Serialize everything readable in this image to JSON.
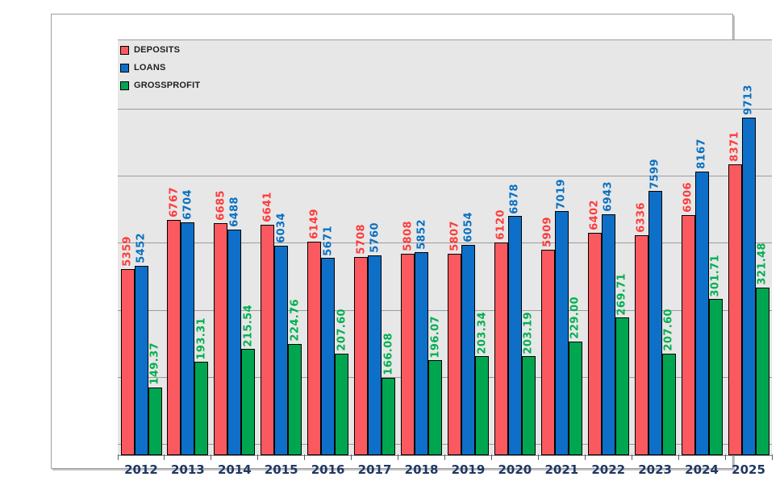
{
  "chart_data": {
    "type": "bar",
    "title": "",
    "categories": [
      "2012",
      "2013",
      "2014",
      "2015",
      "2016",
      "2017",
      "2018",
      "2019",
      "2020",
      "2021",
      "2022",
      "2023",
      "2024",
      "2025"
    ],
    "series": [
      {
        "name": "DEPOSITS",
        "axis": "primary",
        "bar_color": "#FA5A5F",
        "label_color": "#FF3B3B",
        "values": [
          5359,
          6767,
          6685,
          6641,
          6149,
          5708,
          5808,
          5807,
          6120,
          5909,
          6402,
          6336,
          6906,
          8371
        ]
      },
      {
        "name": "LOANS",
        "axis": "primary",
        "bar_color": "#0E6FC8",
        "label_color": "#0B70C0",
        "values": [
          5452,
          6704,
          6488,
          6034,
          5671,
          5760,
          5852,
          6054,
          6878,
          7019,
          6943,
          7599,
          8167,
          9713
        ]
      },
      {
        "name": "GROSSPROFIT",
        "axis": "secondary",
        "bar_color": "#00A550",
        "label_color": "#00B050",
        "values": [
          149.37,
          193.31,
          215.54,
          224.76,
          207.6,
          166.08,
          196.07,
          203.34,
          203.19,
          229.0,
          269.71,
          207.6,
          301.71,
          321.48
        ]
      }
    ],
    "data_labels": true,
    "data_label_rotation": 90,
    "legend_position": "top-left",
    "gridlines": "horizontal",
    "y_axis_labels_visible": false,
    "plot_bg": "#E7E7E7",
    "gridline_color": "#9B9B9B",
    "x_axis_label_color": "#1F3864"
  }
}
